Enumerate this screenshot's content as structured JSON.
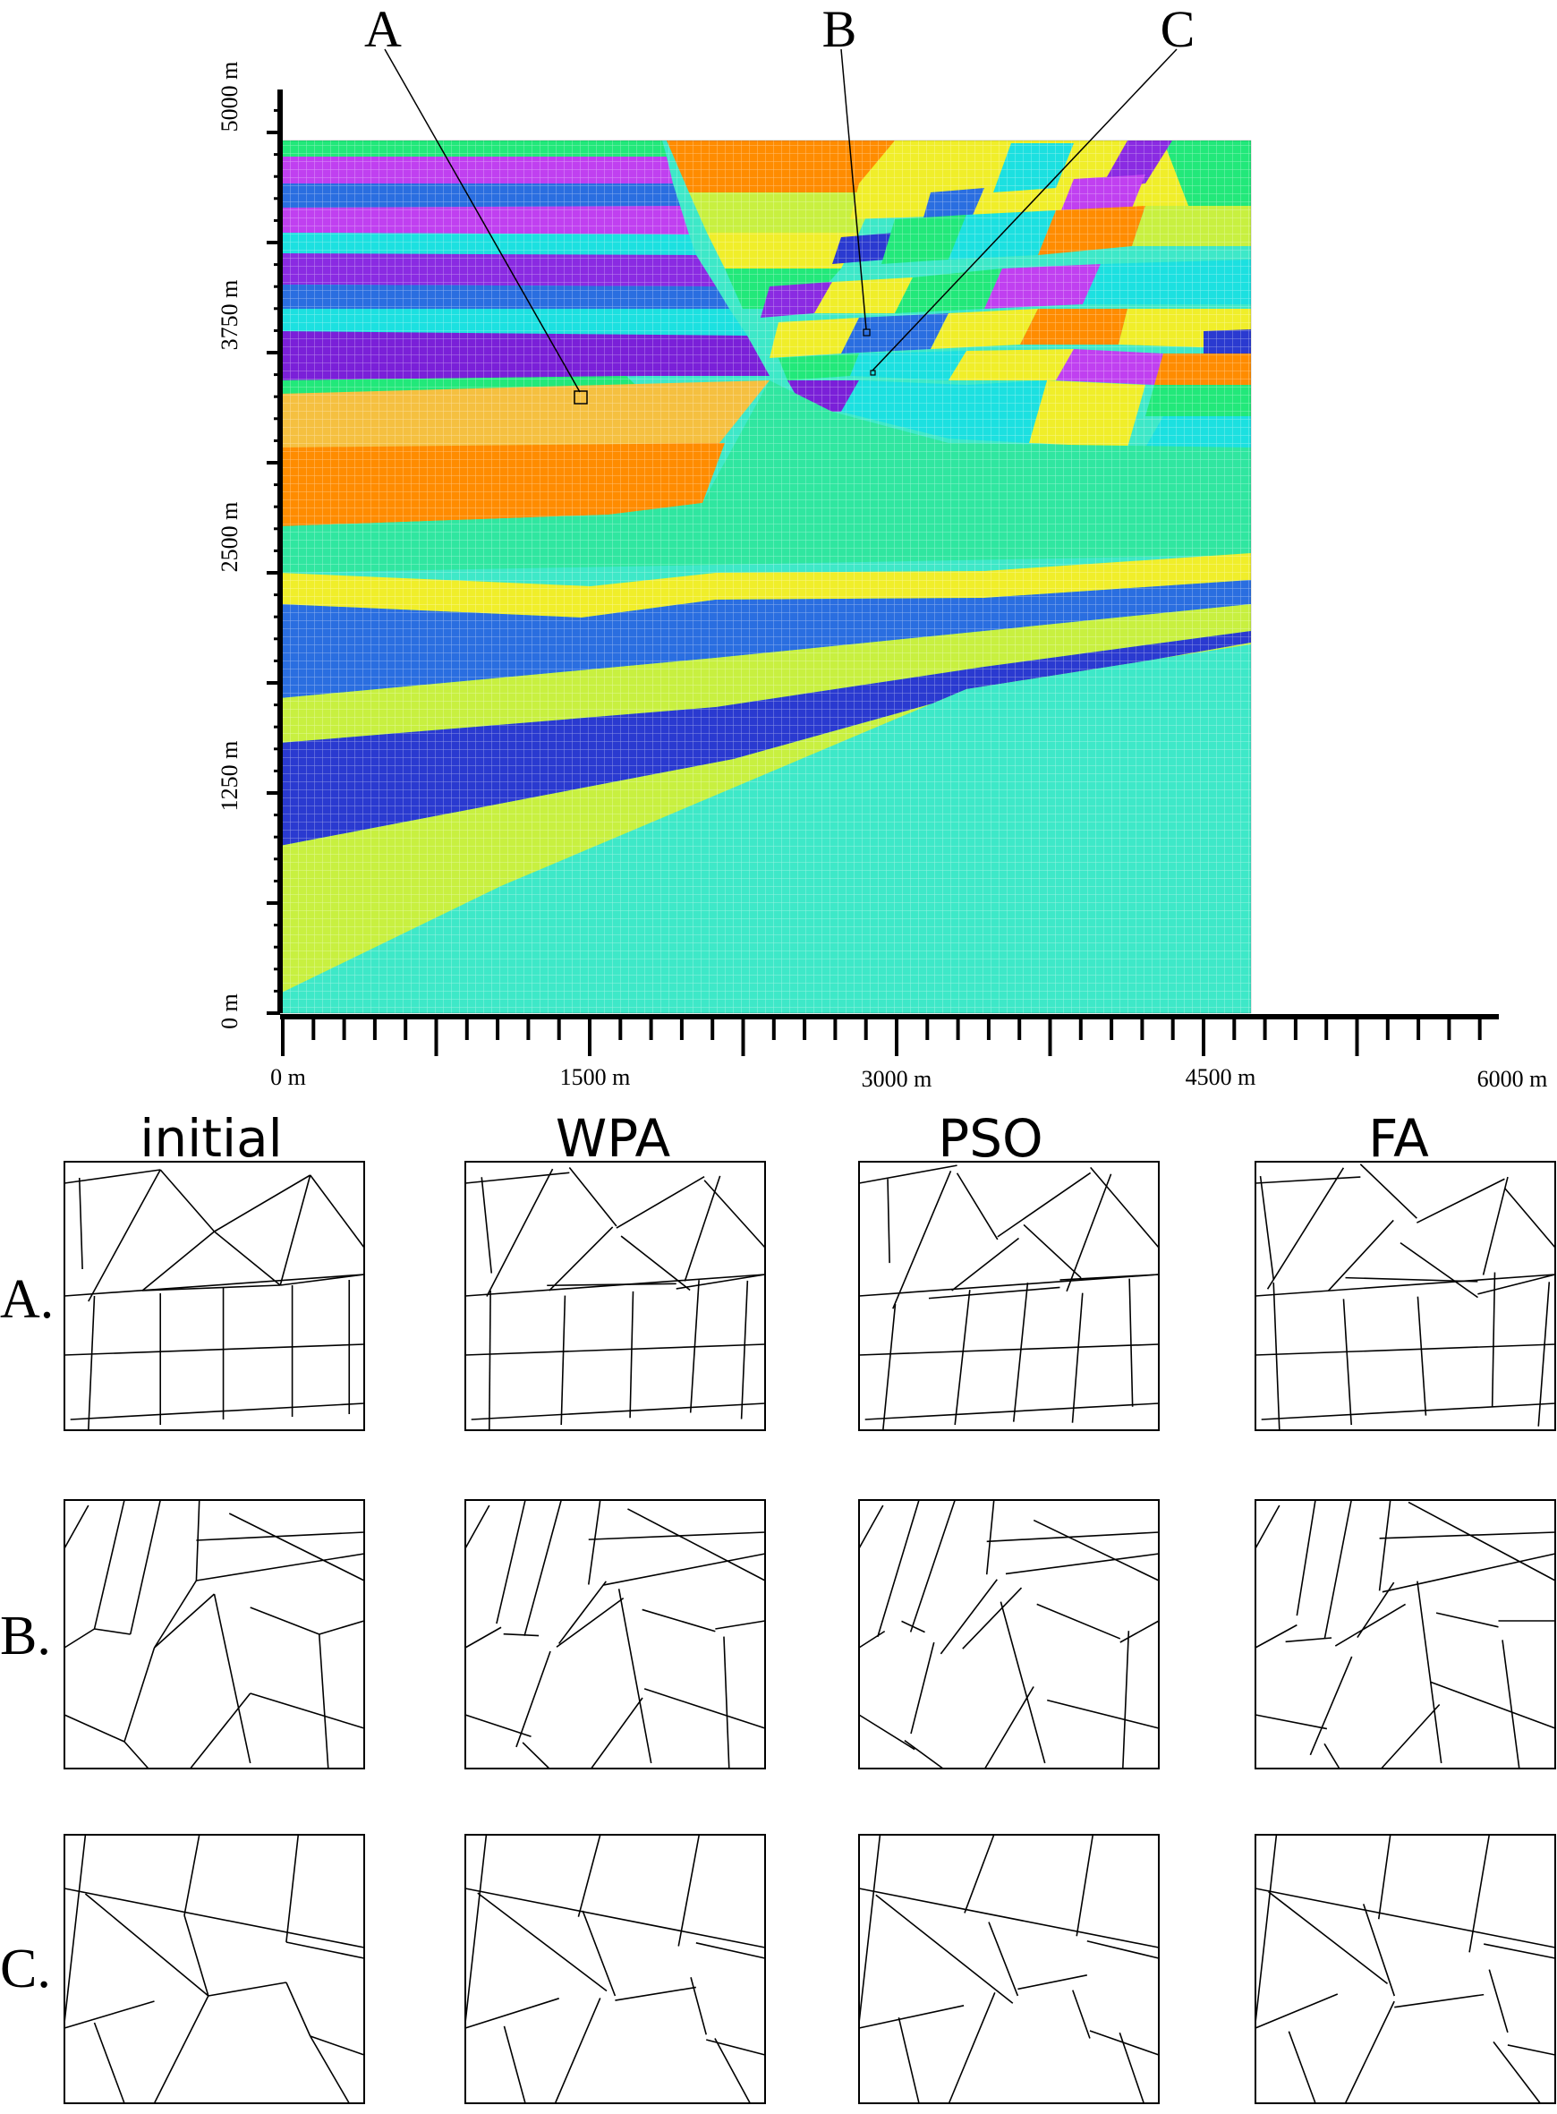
{
  "callouts": [
    "A",
    "B",
    "C"
  ],
  "y_axis": {
    "ticks": [
      "5000 m",
      "3750 m",
      "2500 m",
      "1250 m",
      "0 m"
    ]
  },
  "x_axis": {
    "ticks": [
      "0 m",
      "1500 m",
      "3000 m",
      "4500 m",
      "6000 m"
    ]
  },
  "methods": [
    "initial",
    "WPA",
    "PSO",
    "FA"
  ],
  "rows": [
    "A.",
    "B.",
    "C."
  ],
  "colors": {
    "green": "#22e87a",
    "cyan": "#1ce0e0",
    "blue": "#2a6ee0",
    "violet": "#8a2be2",
    "magenta": "#c040f0",
    "orange": "#ff8c00",
    "yellow": "#f0ee2a",
    "sand": "#f5c040",
    "sea": "#30e6a0",
    "aqua": "#3ee8c8",
    "navy": "#2a3ad0",
    "lime": "#c8f040",
    "purple": "#7a20d8"
  }
}
